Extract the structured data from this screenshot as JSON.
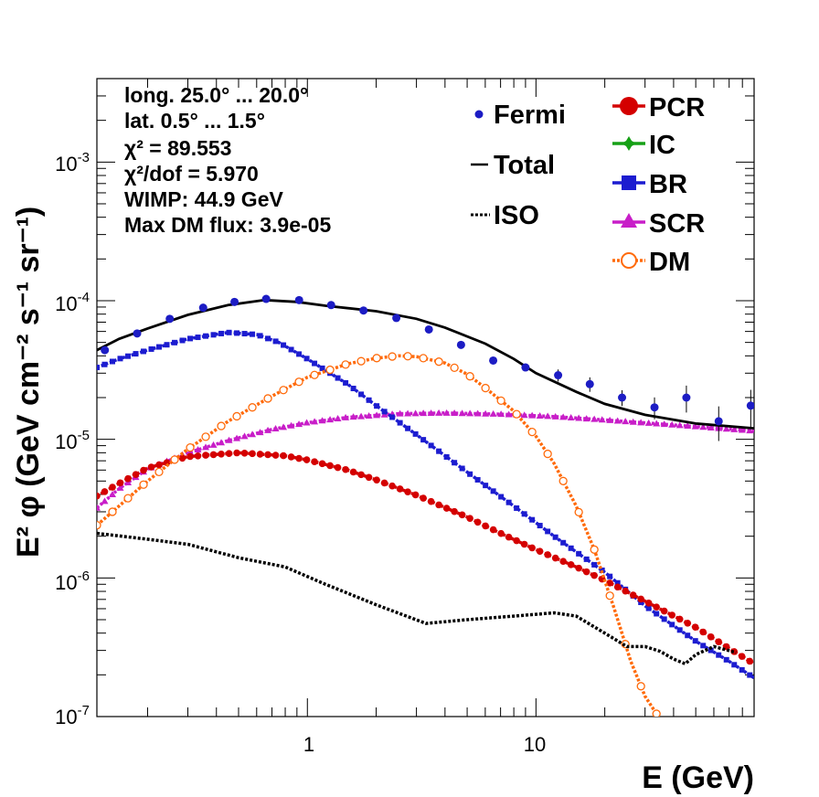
{
  "chart_data": {
    "type": "line",
    "x_scale": "log",
    "y_scale": "log",
    "xlim": [
      0.12,
      90
    ],
    "ylim": [
      1e-07,
      0.004
    ],
    "xlabel": "E (GeV)",
    "ylabel": "E² φ (GeV cm⁻² s⁻¹ sr⁻¹)",
    "x_tick_labels": [
      "1",
      "10"
    ],
    "y_tick_labels": [
      {
        "base": "10",
        "exp": "-7"
      },
      {
        "base": "10",
        "exp": "-6"
      },
      {
        "base": "10",
        "exp": "-5"
      },
      {
        "base": "10",
        "exp": "-4"
      },
      {
        "base": "10",
        "exp": "-3"
      }
    ],
    "info": [
      "long. 25.0° ... 20.0°",
      "lat. 0.5° ... 1.5°",
      "χ² = 89.553",
      "χ²/dof = 5.970",
      "WIMP: 44.9 GeV",
      "Max DM flux: 3.9e-05"
    ],
    "legend": {
      "left": [
        "Fermi",
        "Total",
        "ISO"
      ],
      "right": [
        "PCR",
        "IC",
        "BR",
        "SCR",
        "DM"
      ]
    },
    "colors": {
      "fermi": "#1c1cc4",
      "total": "#000000",
      "iso": "#000000",
      "pcr": "#d40000",
      "ic": "#16a016",
      "br": "#1c1cd0",
      "scr": "#c81ec8",
      "dm": "#ff6a0a"
    },
    "series": [
      {
        "name": "Fermi",
        "kind": "points",
        "x": [
          0.13,
          0.18,
          0.25,
          0.35,
          0.48,
          0.66,
          0.92,
          1.27,
          1.76,
          2.45,
          3.4,
          4.7,
          6.5,
          9.0,
          12.5,
          17.2,
          23.8,
          33,
          45.5,
          63,
          87
        ],
        "y": [
          4.4e-05,
          5.8e-05,
          7.4e-05,
          8.9e-05,
          9.8e-05,
          0.000103,
          0.000101,
          9.3e-05,
          8.5e-05,
          7.5e-05,
          6.2e-05,
          4.8e-05,
          3.7e-05,
          3.3e-05,
          2.9e-05,
          2.5e-05,
          2e-05,
          1.7e-05,
          2e-05,
          1.35e-05,
          1.75e-05
        ],
        "err": [
          0.03,
          0.03,
          0.03,
          0.03,
          0.03,
          0.03,
          0.03,
          0.03,
          0.03,
          0.03,
          0.03,
          0.03,
          0.05,
          0.06,
          0.1,
          0.12,
          0.13,
          0.18,
          0.22,
          0.28,
          0.3
        ]
      },
      {
        "name": "Total",
        "kind": "line",
        "x": [
          0.12,
          0.15,
          0.2,
          0.3,
          0.45,
          0.65,
          0.9,
          1.2,
          2,
          3,
          4,
          6,
          8,
          10,
          15,
          20,
          30,
          50,
          90
        ],
        "y": [
          4.4e-05,
          5.3e-05,
          6.3e-05,
          7.9e-05,
          9.3e-05,
          0.000101,
          9.8e-05,
          9.2e-05,
          8.4e-05,
          7.4e-05,
          6.4e-05,
          4.9e-05,
          3.8e-05,
          3e-05,
          2.2e-05,
          1.8e-05,
          1.5e-05,
          1.3e-05,
          1.2e-05
        ]
      },
      {
        "name": "ISO",
        "kind": "dotted",
        "x": [
          0.12,
          0.2,
          0.3,
          0.5,
          0.8,
          1.2,
          2,
          3.3,
          5,
          8,
          12,
          15,
          20,
          25,
          30,
          35,
          40,
          45,
          50,
          60,
          75
        ],
        "y": [
          2.1e-06,
          1.9e-06,
          1.75e-06,
          1.4e-06,
          1.2e-06,
          9e-07,
          6.4e-07,
          4.7e-07,
          5e-07,
          5.3e-07,
          5.6e-07,
          5.3e-07,
          4e-07,
          3.2e-07,
          3.2e-07,
          2.95e-07,
          2.6e-07,
          2.4e-07,
          2.8e-07,
          3.2e-07,
          2.9e-07
        ]
      },
      {
        "name": "PCR",
        "kind": "dashed-markers",
        "x": [
          0.12,
          0.15,
          0.2,
          0.3,
          0.5,
          0.8,
          1,
          1.5,
          2,
          3,
          5,
          7,
          10,
          15,
          20,
          30,
          50,
          70,
          90
        ],
        "y": [
          3.9e-06,
          4.8e-06,
          6.2e-06,
          7.5e-06,
          8e-06,
          7.6e-06,
          7.1e-06,
          6e-06,
          5.1e-06,
          3.95e-06,
          2.75e-06,
          2.1e-06,
          1.6e-06,
          1.2e-06,
          9.6e-07,
          6.8e-07,
          4.4e-07,
          3.1e-07,
          2.4e-07
        ]
      },
      {
        "name": "BR",
        "kind": "dashed-markers",
        "x": [
          0.12,
          0.15,
          0.2,
          0.3,
          0.45,
          0.6,
          0.75,
          1,
          1.5,
          2,
          3,
          5,
          8,
          12,
          20,
          30,
          50,
          70,
          90
        ],
        "y": [
          3.3e-05,
          3.8e-05,
          4.4e-05,
          5.3e-05,
          5.9e-05,
          5.7e-05,
          5e-05,
          3.8e-05,
          2.5e-05,
          1.75e-05,
          1.08e-05,
          5.8e-06,
          3.3e-06,
          2e-06,
          1.1e-06,
          6.3e-07,
          3.5e-07,
          2.5e-07,
          1.9e-07
        ]
      },
      {
        "name": "SCR",
        "kind": "dashed-markers",
        "x": [
          0.12,
          0.15,
          0.2,
          0.3,
          0.45,
          0.7,
          1,
          1.5,
          2.5,
          4,
          7,
          12,
          20,
          40,
          90
        ],
        "y": [
          3.2e-06,
          4.4e-06,
          6.1e-06,
          8e-06,
          9.8e-06,
          1.18e-05,
          1.32e-05,
          1.44e-05,
          1.53e-05,
          1.55e-05,
          1.52e-05,
          1.46e-05,
          1.38e-05,
          1.27e-05,
          1.15e-05
        ]
      },
      {
        "name": "DM",
        "kind": "dashed-markers",
        "x": [
          0.12,
          0.15,
          0.2,
          0.3,
          0.45,
          0.7,
          1,
          1.5,
          2,
          2.5,
          3,
          4,
          5,
          6,
          8,
          10,
          12,
          15,
          18,
          22,
          26,
          30,
          35,
          38
        ],
        "y": [
          2.4e-06,
          3.3e-06,
          5e-06,
          8.5e-06,
          1.35e-05,
          2.05e-05,
          2.8e-05,
          3.5e-05,
          3.85e-05,
          4e-05,
          3.95e-05,
          3.55e-05,
          2.95e-05,
          2.35e-05,
          1.6e-05,
          1.05e-05,
          6.7e-06,
          3.3e-06,
          1.6e-06,
          6e-07,
          2.5e-07,
          1.4e-07,
          9.5e-08,
          8e-08
        ]
      }
    ]
  }
}
